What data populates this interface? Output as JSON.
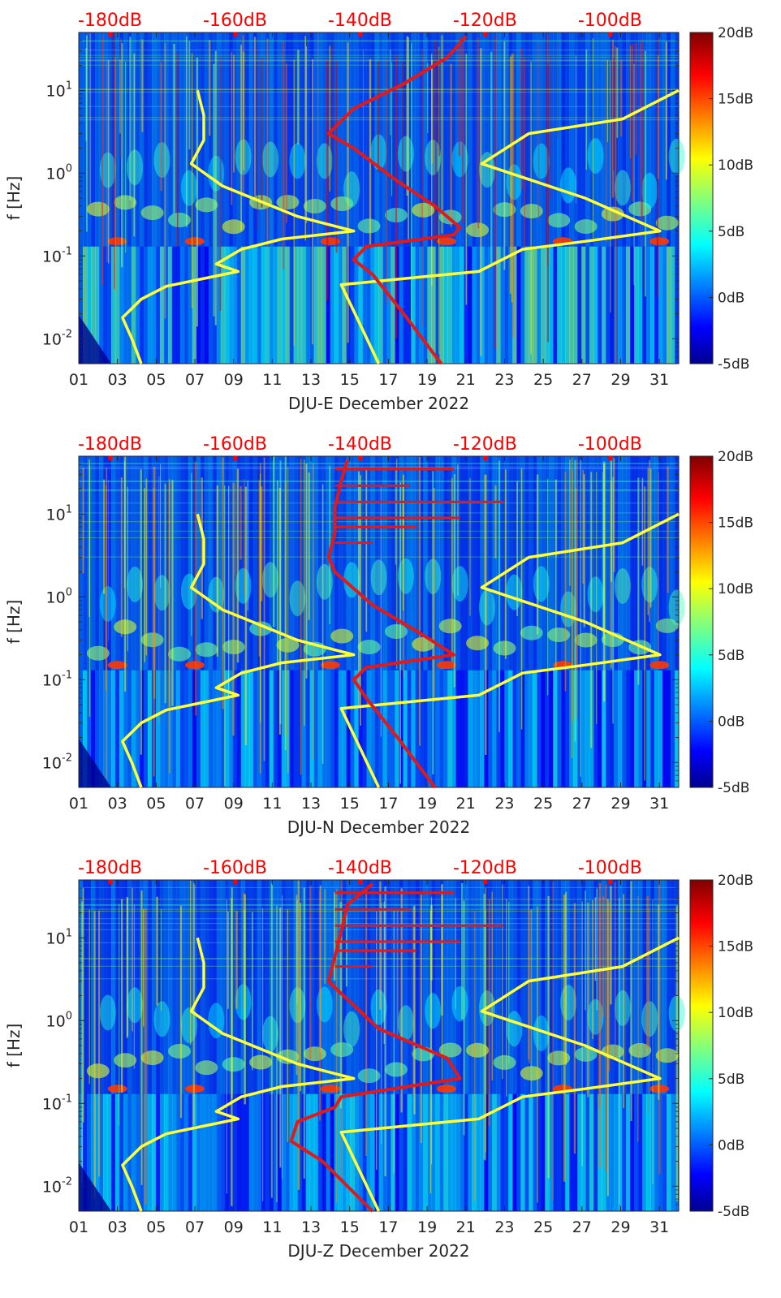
{
  "chart_data": [
    {
      "type": "heatmap",
      "panel": "east",
      "xlabel": "DJU-E December 2022",
      "ylabel": "f [Hz]",
      "x_ticks": [
        "01",
        "03",
        "05",
        "07",
        "09",
        "11",
        "13",
        "15",
        "17",
        "19",
        "21",
        "23",
        "25",
        "27",
        "29",
        "31"
      ],
      "xlim": [
        1,
        32
      ],
      "y_scale": "log",
      "ylim": [
        0.005,
        50
      ],
      "y_ticks": [
        "10^{-2}",
        "10^{-1}",
        "10^{0}",
        "10^{1}"
      ],
      "top_axis_ticks": [
        "-180dB",
        "-160dB",
        "-140dB",
        "-120dB",
        "-100dB"
      ],
      "top_axis_range": [
        -185,
        -89
      ],
      "colorbar": {
        "ticks": [
          "-5dB",
          "0dB",
          "5dB",
          "10dB",
          "15dB",
          "20dB"
        ],
        "range": [
          -5,
          20
        ],
        "colormap": "jet"
      },
      "series": [
        {
          "color": "#ffff3a",
          "style": "low-noise-model",
          "points": [
            [
              -175,
              0.005
            ],
            [
              -176.5,
              0.01
            ],
            [
              -178,
              0.018
            ],
            [
              -175,
              0.03
            ],
            [
              -171,
              0.043
            ],
            [
              -159.5,
              0.065
            ],
            [
              -163,
              0.08
            ],
            [
              -159,
              0.12
            ],
            [
              -152.5,
              0.16
            ],
            [
              -141,
              0.2
            ],
            [
              -150,
              0.3
            ],
            [
              -162,
              0.7
            ],
            [
              -167,
              1.3
            ],
            [
              -165,
              2.5
            ],
            [
              -165,
              5
            ],
            [
              -166,
              10
            ]
          ]
        },
        {
          "color": "#ffff3a",
          "style": "high-noise-model",
          "points": [
            [
              -137,
              0.005
            ],
            [
              -143,
              0.045
            ],
            [
              -131,
              0.055
            ],
            [
              -121,
              0.065
            ],
            [
              -114,
              0.12
            ],
            [
              -104,
              0.15
            ],
            [
              -92,
              0.2
            ],
            [
              -104,
              0.5
            ],
            [
              -120.5,
              1.3
            ],
            [
              -113,
              3
            ],
            [
              -98,
              4.5
            ],
            [
              -89,
              10
            ]
          ]
        },
        {
          "color": "#e01a1a",
          "style": "median-psd",
          "points": [
            [
              -127,
              0.005
            ],
            [
              -133,
              0.02
            ],
            [
              -138,
              0.06
            ],
            [
              -141,
              0.09
            ],
            [
              -139,
              0.13
            ],
            [
              -125,
              0.18
            ],
            [
              -124,
              0.22
            ],
            [
              -128,
              0.4
            ],
            [
              -134,
              0.8
            ],
            [
              -141,
              2
            ],
            [
              -145,
              3
            ],
            [
              -141,
              6
            ],
            [
              -133,
              12
            ],
            [
              -126,
              25
            ],
            [
              -123,
              45
            ]
          ]
        }
      ]
    },
    {
      "type": "heatmap",
      "panel": "north",
      "xlabel": "DJU-N December 2022",
      "ylabel": "f [Hz]",
      "x_ticks": [
        "01",
        "03",
        "05",
        "07",
        "09",
        "11",
        "13",
        "15",
        "17",
        "19",
        "21",
        "23",
        "25",
        "27",
        "29",
        "31"
      ],
      "xlim": [
        1,
        32
      ],
      "y_scale": "log",
      "ylim": [
        0.005,
        50
      ],
      "y_ticks": [
        "10^{-2}",
        "10^{-1}",
        "10^{0}",
        "10^{1}"
      ],
      "top_axis_ticks": [
        "-180dB",
        "-160dB",
        "-140dB",
        "-120dB",
        "-100dB"
      ],
      "top_axis_range": [
        -185,
        -89
      ],
      "colorbar": {
        "ticks": [
          "-5dB",
          "0dB",
          "5dB",
          "10dB",
          "15dB",
          "20dB"
        ],
        "range": [
          -5,
          20
        ],
        "colormap": "jet"
      },
      "series": [
        {
          "color": "#ffff3a",
          "style": "low-noise-model",
          "points": [
            [
              -175,
              0.005
            ],
            [
              -176.5,
              0.01
            ],
            [
              -178,
              0.018
            ],
            [
              -175,
              0.03
            ],
            [
              -171,
              0.043
            ],
            [
              -159.5,
              0.065
            ],
            [
              -163,
              0.08
            ],
            [
              -159,
              0.12
            ],
            [
              -152.5,
              0.16
            ],
            [
              -141,
              0.2
            ],
            [
              -150,
              0.3
            ],
            [
              -162,
              0.7
            ],
            [
              -167,
              1.3
            ],
            [
              -165,
              2.5
            ],
            [
              -165,
              5
            ],
            [
              -166,
              10
            ]
          ]
        },
        {
          "color": "#ffff3a",
          "style": "high-noise-model",
          "points": [
            [
              -137,
              0.005
            ],
            [
              -143,
              0.045
            ],
            [
              -131,
              0.055
            ],
            [
              -121,
              0.065
            ],
            [
              -114,
              0.12
            ],
            [
              -104,
              0.15
            ],
            [
              -92,
              0.2
            ],
            [
              -104,
              0.5
            ],
            [
              -120.5,
              1.3
            ],
            [
              -113,
              3
            ],
            [
              -98,
              4.5
            ],
            [
              -89,
              10
            ]
          ]
        },
        {
          "color": "#e01a1a",
          "style": "median-psd",
          "points": [
            [
              -128,
              0.005
            ],
            [
              -134,
              0.02
            ],
            [
              -139,
              0.06
            ],
            [
              -141,
              0.1
            ],
            [
              -139,
              0.14
            ],
            [
              -125,
              0.2
            ],
            [
              -130,
              0.35
            ],
            [
              -138,
              0.8
            ],
            [
              -144,
              2
            ],
            [
              -145,
              3
            ],
            [
              -144,
              6
            ],
            [
              -144,
              12
            ],
            [
              -143,
              25
            ],
            [
              -142,
              45
            ]
          ]
        }
      ]
    },
    {
      "type": "heatmap",
      "panel": "vertical",
      "xlabel": "DJU-Z December 2022",
      "ylabel": "f [Hz]",
      "x_ticks": [
        "01",
        "03",
        "05",
        "07",
        "09",
        "11",
        "13",
        "15",
        "17",
        "19",
        "21",
        "23",
        "25",
        "27",
        "29",
        "31"
      ],
      "xlim": [
        1,
        32
      ],
      "y_scale": "log",
      "ylim": [
        0.005,
        50
      ],
      "y_ticks": [
        "10^{-2}",
        "10^{-1}",
        "10^{0}",
        "10^{1}"
      ],
      "top_axis_ticks": [
        "-180dB",
        "-160dB",
        "-140dB",
        "-120dB",
        "-100dB"
      ],
      "top_axis_range": [
        -185,
        -89
      ],
      "colorbar": {
        "ticks": [
          "-5dB",
          "0dB",
          "5dB",
          "10dB",
          "15dB",
          "20dB"
        ],
        "range": [
          -5,
          20
        ],
        "colormap": "jet"
      },
      "series": [
        {
          "color": "#ffff3a",
          "style": "low-noise-model",
          "points": [
            [
              -175,
              0.005
            ],
            [
              -176.5,
              0.01
            ],
            [
              -178,
              0.018
            ],
            [
              -175,
              0.03
            ],
            [
              -171,
              0.043
            ],
            [
              -159.5,
              0.065
            ],
            [
              -163,
              0.08
            ],
            [
              -159,
              0.12
            ],
            [
              -152.5,
              0.16
            ],
            [
              -141,
              0.2
            ],
            [
              -150,
              0.3
            ],
            [
              -162,
              0.7
            ],
            [
              -167,
              1.3
            ],
            [
              -165,
              2.5
            ],
            [
              -165,
              5
            ],
            [
              -166,
              10
            ]
          ]
        },
        {
          "color": "#ffff3a",
          "style": "high-noise-model",
          "points": [
            [
              -137,
              0.005
            ],
            [
              -143,
              0.045
            ],
            [
              -131,
              0.055
            ],
            [
              -121,
              0.065
            ],
            [
              -114,
              0.12
            ],
            [
              -104,
              0.15
            ],
            [
              -92,
              0.2
            ],
            [
              -104,
              0.5
            ],
            [
              -120.5,
              1.3
            ],
            [
              -113,
              3
            ],
            [
              -98,
              4.5
            ],
            [
              -89,
              10
            ]
          ]
        },
        {
          "color": "#e01a1a",
          "style": "median-psd",
          "points": [
            [
              -138,
              0.005
            ],
            [
              -146,
              0.02
            ],
            [
              -151,
              0.035
            ],
            [
              -150,
              0.06
            ],
            [
              -144,
              0.09
            ],
            [
              -143,
              0.12
            ],
            [
              -124,
              0.2
            ],
            [
              -126,
              0.35
            ],
            [
              -137,
              0.8
            ],
            [
              -144,
              2.5
            ],
            [
              -145,
              3
            ],
            [
              -144,
              6
            ],
            [
              -143,
              12
            ],
            [
              -142,
              25
            ],
            [
              -138,
              45
            ]
          ]
        }
      ]
    }
  ]
}
